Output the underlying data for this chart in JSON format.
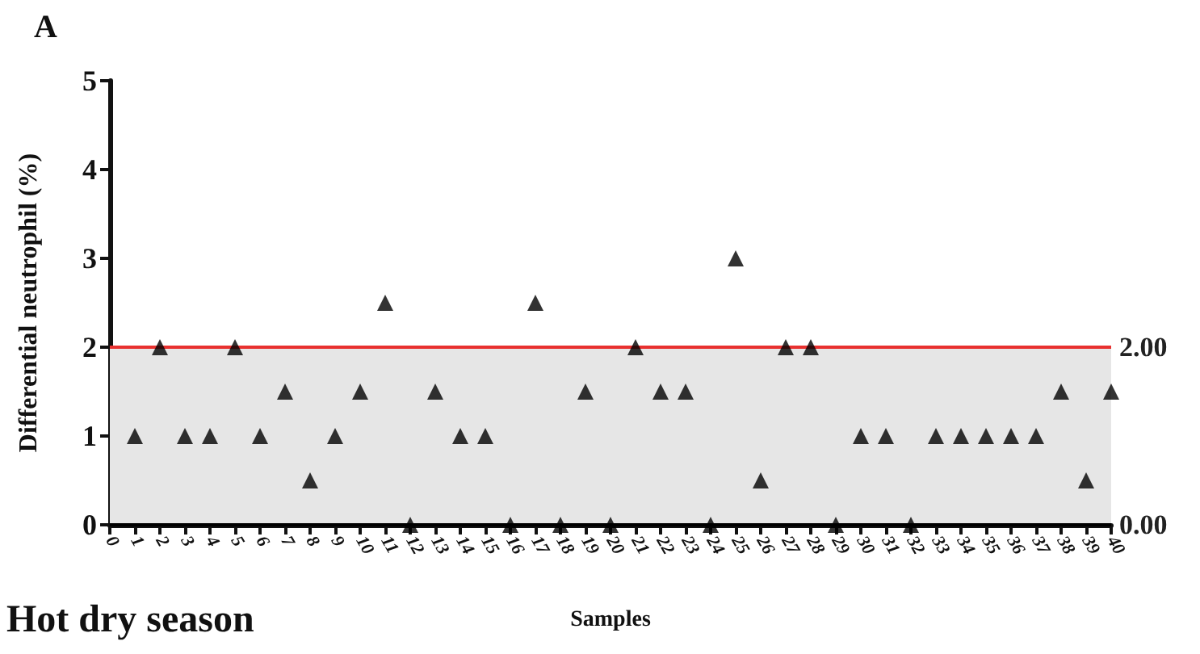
{
  "chart_data": {
    "type": "scatter",
    "title": "A",
    "xlabel": "Samples",
    "ylabel": "Differential neutrophil (%)",
    "annotations": [
      "Hot dry season"
    ],
    "x": [
      1,
      2,
      3,
      4,
      5,
      6,
      7,
      8,
      9,
      10,
      11,
      12,
      13,
      14,
      15,
      16,
      17,
      18,
      19,
      20,
      21,
      22,
      23,
      24,
      25,
      26,
      27,
      28,
      29,
      30,
      31,
      32,
      33,
      34,
      35,
      36,
      37,
      38,
      39,
      40
    ],
    "series": [
      {
        "color": "#000000",
        "values": [
          1,
          2,
          1,
          1,
          2,
          1,
          1.5,
          0.5,
          1,
          1.5,
          2.5,
          0,
          1.5,
          1,
          1,
          0,
          2.5,
          0,
          1.5,
          0,
          2,
          1.5,
          1.5,
          0,
          3,
          0.5,
          2,
          2,
          0,
          1,
          1,
          0,
          1,
          1,
          1,
          1,
          1,
          1.5,
          0.5,
          1.5
        ]
      }
    ],
    "xlim": [
      0,
      40
    ],
    "xticks": [
      0,
      1,
      2,
      3,
      4,
      5,
      6,
      7,
      8,
      9,
      10,
      11,
      12,
      13,
      14,
      15,
      16,
      17,
      18,
      19,
      20,
      21,
      22,
      23,
      24,
      25,
      26,
      27,
      28,
      29,
      30,
      31,
      32,
      33,
      34,
      35,
      36,
      37,
      38,
      39,
      40
    ],
    "ylim": [
      0,
      5
    ],
    "yticks": [
      0,
      1,
      2,
      3,
      4,
      5
    ],
    "ref_lines": [
      {
        "axis": "y",
        "value": 2,
        "label": "2.00",
        "color": "#e8312f"
      },
      {
        "axis": "y",
        "value": 0,
        "label": "0.00",
        "color": "#000000"
      }
    ],
    "bands": [
      {
        "axis": "y",
        "from": 0,
        "to": 2,
        "color": "#e6e6e6"
      }
    ],
    "grid": false,
    "marker": "triangle"
  }
}
